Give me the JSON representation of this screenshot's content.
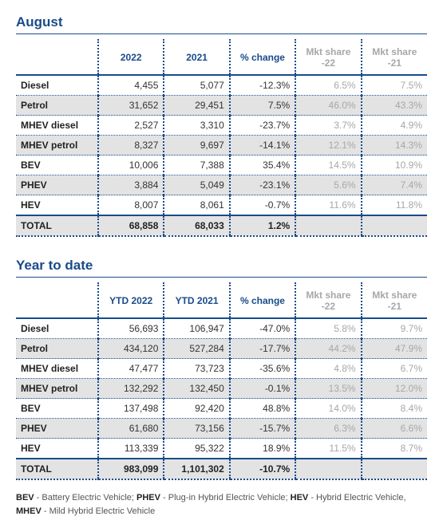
{
  "colors": {
    "primary": "#194b8a",
    "muted": "#a7a7a7",
    "zebra": "#e3e3e3",
    "text": "#333333"
  },
  "tables": [
    {
      "title": "August",
      "columns": [
        "",
        "2022",
        "2021",
        "% change",
        "Mkt share -22",
        "Mkt share -21"
      ],
      "rows": [
        {
          "label": "Diesel",
          "c1": "4,455",
          "c2": "5,077",
          "pct": "-12.3%",
          "m22": "6.5%",
          "m21": "7.5%"
        },
        {
          "label": "Petrol",
          "c1": "31,652",
          "c2": "29,451",
          "pct": "7.5%",
          "m22": "46.0%",
          "m21": "43.3%"
        },
        {
          "label": "MHEV diesel",
          "c1": "2,527",
          "c2": "3,310",
          "pct": "-23.7%",
          "m22": "3.7%",
          "m21": "4.9%"
        },
        {
          "label": "MHEV petrol",
          "c1": "8,327",
          "c2": "9,697",
          "pct": "-14.1%",
          "m22": "12.1%",
          "m21": "14.3%"
        },
        {
          "label": "BEV",
          "c1": "10,006",
          "c2": "7,388",
          "pct": "35.4%",
          "m22": "14.5%",
          "m21": "10.9%"
        },
        {
          "label": "PHEV",
          "c1": "3,884",
          "c2": "5,049",
          "pct": "-23.1%",
          "m22": "5.6%",
          "m21": "7.4%"
        },
        {
          "label": "HEV",
          "c1": "8,007",
          "c2": "8,061",
          "pct": "-0.7%",
          "m22": "11.6%",
          "m21": "11.8%"
        }
      ],
      "total": {
        "label": "TOTAL",
        "c1": "68,858",
        "c2": "68,033",
        "pct": "1.2%",
        "m22": "",
        "m21": ""
      }
    },
    {
      "title": "Year to date",
      "columns": [
        "",
        "YTD 2022",
        "YTD 2021",
        "% change",
        "Mkt share -22",
        "Mkt share -21"
      ],
      "rows": [
        {
          "label": "Diesel",
          "c1": "56,693",
          "c2": "106,947",
          "pct": "-47.0%",
          "m22": "5.8%",
          "m21": "9.7%"
        },
        {
          "label": "Petrol",
          "c1": "434,120",
          "c2": "527,284",
          "pct": "-17.7%",
          "m22": "44.2%",
          "m21": "47.9%"
        },
        {
          "label": "MHEV diesel",
          "c1": "47,477",
          "c2": "73,723",
          "pct": "-35.6%",
          "m22": "4.8%",
          "m21": "6.7%"
        },
        {
          "label": "MHEV petrol",
          "c1": "132,292",
          "c2": "132,450",
          "pct": "-0.1%",
          "m22": "13.5%",
          "m21": "12.0%"
        },
        {
          "label": "BEV",
          "c1": "137,498",
          "c2": "92,420",
          "pct": "48.8%",
          "m22": "14.0%",
          "m21": "8.4%"
        },
        {
          "label": "PHEV",
          "c1": "61,680",
          "c2": "73,156",
          "pct": "-15.7%",
          "m22": "6.3%",
          "m21": "6.6%"
        },
        {
          "label": "HEV",
          "c1": "113,339",
          "c2": "95,322",
          "pct": "18.9%",
          "m22": "11.5%",
          "m21": "8.7%"
        }
      ],
      "total": {
        "label": "TOTAL",
        "c1": "983,099",
        "c2": "1,101,302",
        "pct": "-10.7%",
        "m22": "",
        "m21": ""
      }
    }
  ],
  "legend": [
    {
      "abbr": "BEV",
      "def": "Battery Electric Vehicle"
    },
    {
      "abbr": "PHEV",
      "def": "Plug-in Hybrid Electric Vehicle"
    },
    {
      "abbr": "HEV",
      "def": "Hybrid Electric Vehicle"
    },
    {
      "abbr": "MHEV",
      "def": "Mild Hybrid Electric Vehicle"
    }
  ]
}
